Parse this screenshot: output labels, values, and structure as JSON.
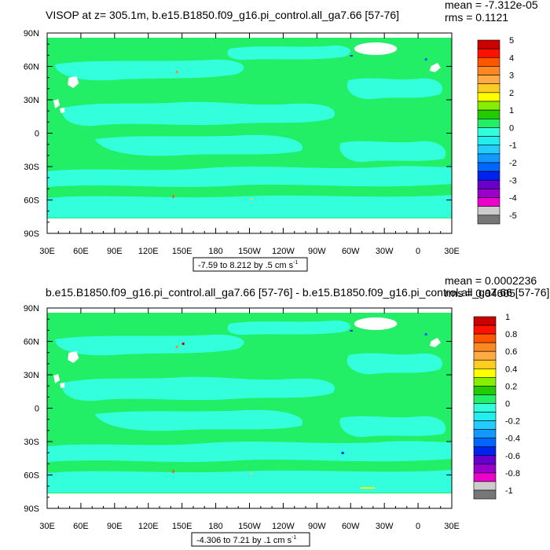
{
  "colors": {
    "land": "#ffffff",
    "ocean_main": "#22ee66",
    "ocean_band": "#33ffdd",
    "ice": "#ffffff",
    "frame": "#000000"
  },
  "chart_data": [
    {
      "type": "heatmap",
      "title": "VISOP at z= 305.1m, b.e15.B1850.f09_g16.pi_control.all_ga7.66 [57-76]",
      "mean_text": "mean = -7.312e-05",
      "rms_text": "rms = 0.1121",
      "x_ticks": [
        "30E",
        "60E",
        "90E",
        "120E",
        "150E",
        "180",
        "150W",
        "120W",
        "90W",
        "60W",
        "30W",
        "0",
        "30E"
      ],
      "y_ticks": [
        "90N",
        "60N",
        "30N",
        "0",
        "30S",
        "60S",
        "90S"
      ],
      "range_label": "-7.59 to 8.212 by .5 cm s",
      "range_sup": "-1",
      "xlim": [
        30,
        390
      ],
      "ylim": [
        -90,
        90
      ],
      "colorbar_labels": [
        "5",
        "4",
        "3",
        "2",
        "1",
        "0",
        "-1",
        "-2",
        "-3",
        "-4",
        "-5"
      ],
      "colorbar_colors": [
        "#cc0000",
        "#ff1100",
        "#ff5500",
        "#ff8822",
        "#ffaa44",
        "#ffcc22",
        "#ffff00",
        "#88ee00",
        "#22cc00",
        "#22ee66",
        "#33ffdd",
        "#22eeee",
        "#22ccff",
        "#1199ff",
        "#0066ff",
        "#0022ee",
        "#6600cc",
        "#9900cc",
        "#ee00cc",
        "#cccccc",
        "#777777"
      ]
    },
    {
      "type": "heatmap",
      "title": "b.e15.B1850.f09_g16.pi_control.all_ga7.66 [57-76] - b.e15.B1850.f09_g16.pi_control.all_ga7.66 [57-76]",
      "mean_text": "mean = 0.0002236",
      "rms_text": "rms = 0.04605",
      "x_ticks": [
        "30E",
        "60E",
        "90E",
        "120E",
        "150E",
        "180",
        "150W",
        "120W",
        "90W",
        "60W",
        "30W",
        "0",
        "30E"
      ],
      "y_ticks": [
        "90N",
        "60N",
        "30N",
        "0",
        "30S",
        "60S",
        "90S"
      ],
      "range_label": "-4.306 to 7.21 by .1 cm s",
      "range_sup": "-1",
      "xlim": [
        30,
        390
      ],
      "ylim": [
        -90,
        90
      ],
      "colorbar_labels": [
        "1",
        "0.8",
        "0.6",
        "0.4",
        "0.2",
        "0",
        "-0.2",
        "-0.4",
        "-0.6",
        "-0.8",
        "-1"
      ],
      "colorbar_colors": [
        "#cc0000",
        "#ff1100",
        "#ff5500",
        "#ff8822",
        "#ffaa44",
        "#ffcc22",
        "#ffff00",
        "#88ee00",
        "#22cc00",
        "#22ee66",
        "#33ffdd",
        "#22eeee",
        "#22ccff",
        "#1199ff",
        "#0066ff",
        "#0022ee",
        "#6600cc",
        "#9900cc",
        "#ee00cc",
        "#cccccc",
        "#777777"
      ]
    }
  ]
}
